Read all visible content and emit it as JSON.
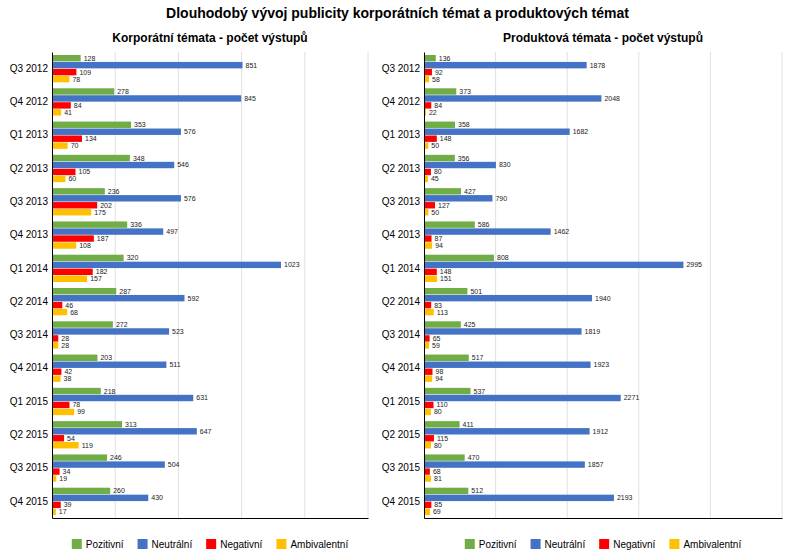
{
  "title": "Dlouhodobý vývoj publicity korporátních témat a produktových témat",
  "chart_data": [
    {
      "type": "bar",
      "orientation": "horizontal",
      "title": "Korporátní témata - počet výstupů",
      "categories": [
        "Q3 2012",
        "Q4 2012",
        "Q1 2013",
        "Q2 2013",
        "Q3 2013",
        "Q4 2013",
        "Q1 2014",
        "Q2 2014",
        "Q3 2014",
        "Q4 2014",
        "Q1 2015",
        "Q2 2015",
        "Q3 2015",
        "Q4 2015"
      ],
      "series": [
        {
          "name": "Pozitivní",
          "color": "#70AD47",
          "values": [
            128,
            278,
            353,
            348,
            236,
            336,
            320,
            287,
            272,
            203,
            218,
            313,
            246,
            260
          ]
        },
        {
          "name": "Neutrální",
          "color": "#4472C4",
          "values": [
            851,
            845,
            576,
            546,
            576,
            497,
            1023,
            592,
            523,
            511,
            631,
            647,
            504,
            430
          ]
        },
        {
          "name": "Negativní",
          "color": "#FF0000",
          "values": [
            109,
            84,
            134,
            105,
            202,
            187,
            182,
            46,
            28,
            42,
            78,
            54,
            34,
            39
          ]
        },
        {
          "name": "Ambivalentní",
          "color": "#FFC000",
          "values": [
            78,
            41,
            70,
            60,
            175,
            108,
            157,
            68,
            28,
            38,
            99,
            119,
            19,
            17
          ]
        }
      ],
      "xlim": [
        0,
        1411.74
      ],
      "xticks": [
        282.348,
        564.696,
        847.044,
        1129.392,
        1411.74
      ],
      "grid": true,
      "data_labels": true,
      "tick_labels": "y",
      "legend": "bottom"
    },
    {
      "type": "bar",
      "orientation": "horizontal",
      "title": "Produktová témata - počet výstupů",
      "categories": [
        "Q3 2012",
        "Q4 2012",
        "Q1 2013",
        "Q2 2013",
        "Q3 2013",
        "Q4 2013",
        "Q1 2014",
        "Q2 2014",
        "Q3 2014",
        "Q4 2014",
        "Q1 2015",
        "Q2 2015",
        "Q3 2015",
        "Q4 2015"
      ],
      "series": [
        {
          "name": "Pozitivní",
          "color": "#70AD47",
          "values": [
            136,
            373,
            358,
            356,
            427,
            586,
            808,
            501,
            425,
            517,
            537,
            411,
            470,
            512
          ]
        },
        {
          "name": "Neutrální",
          "color": "#4472C4",
          "values": [
            1878,
            2048,
            1682,
            830,
            790,
            1462,
            2995,
            1940,
            1819,
            1923,
            2271,
            1912,
            1857,
            2193
          ]
        },
        {
          "name": "Negativní",
          "color": "#FF0000",
          "values": [
            92,
            84,
            148,
            80,
            127,
            87,
            148,
            83,
            65,
            98,
            110,
            115,
            68,
            85
          ]
        },
        {
          "name": "Ambivalentní",
          "color": "#FFC000",
          "values": [
            58,
            22,
            50,
            45,
            50,
            94,
            151,
            113,
            59,
            94,
            80,
            80,
            81,
            69
          ]
        }
      ],
      "xlim": [
        0,
        4133.1
      ],
      "xticks": [
        826.62,
        1653.24,
        2479.86,
        3306.48,
        4133.1
      ],
      "grid": true,
      "data_labels": true,
      "tick_labels": "y",
      "legend": "bottom"
    }
  ]
}
